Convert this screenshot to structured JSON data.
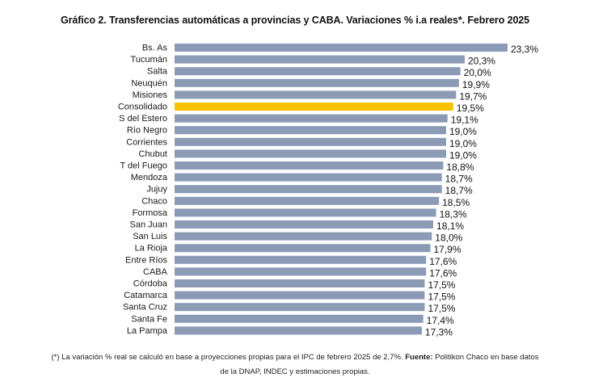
{
  "chart_data": {
    "type": "bar",
    "orientation": "horizontal",
    "title": "Gráfico 2. Transferencias automáticas a provincias y CABA. Variaciones % i.a reales*. Febrero 2025",
    "categories": [
      "Bs. As",
      "Tucumán",
      "Salta",
      "Neuquén",
      "Misiones",
      "Consolidado",
      "S del Estero",
      "Río Negro",
      "Corrientes",
      "Chubut",
      "T del Fuego",
      "Mendoza",
      "Jujuy",
      "Chaco",
      "Formosa",
      "San Juan",
      "San Luis",
      "La Rioja",
      "Entre Ríos",
      "CABA",
      "Córdoba",
      "Catamarca",
      "Santa Cruz",
      "Santa Fe",
      "La Pampa"
    ],
    "values": [
      23.3,
      20.3,
      20.0,
      19.9,
      19.7,
      19.5,
      19.1,
      19.0,
      19.0,
      19.0,
      18.8,
      18.7,
      18.7,
      18.5,
      18.3,
      18.1,
      18.0,
      17.9,
      17.6,
      17.6,
      17.5,
      17.5,
      17.5,
      17.4,
      17.3
    ],
    "value_labels": [
      "23,3%",
      "20,3%",
      "20,0%",
      "19,9%",
      "19,7%",
      "19,5%",
      "19,1%",
      "19,0%",
      "19,0%",
      "19,0%",
      "18,8%",
      "18,7%",
      "18,7%",
      "18,5%",
      "18,3%",
      "18,1%",
      "18,0%",
      "17,9%",
      "17,6%",
      "17,6%",
      "17,5%",
      "17,5%",
      "17,5%",
      "17,4%",
      "17,3%"
    ],
    "highlight_category": "Consolidado",
    "colors": {
      "bar": "#8b9ab5",
      "highlight": "#f7c200"
    },
    "xlim": [
      0,
      23.3
    ],
    "grid": false,
    "legend": "none"
  },
  "notes": {
    "line1_prefix": "(*) La variación % real se calculó en base a proyecciones propias para el IPC de febrero 2025 de 2,7%. ",
    "line1_bold": "Fuente:",
    "line1_suffix": " Politikon Chaco en base datos",
    "line2": "de la DNAP, INDEC y estimaciones propias."
  }
}
